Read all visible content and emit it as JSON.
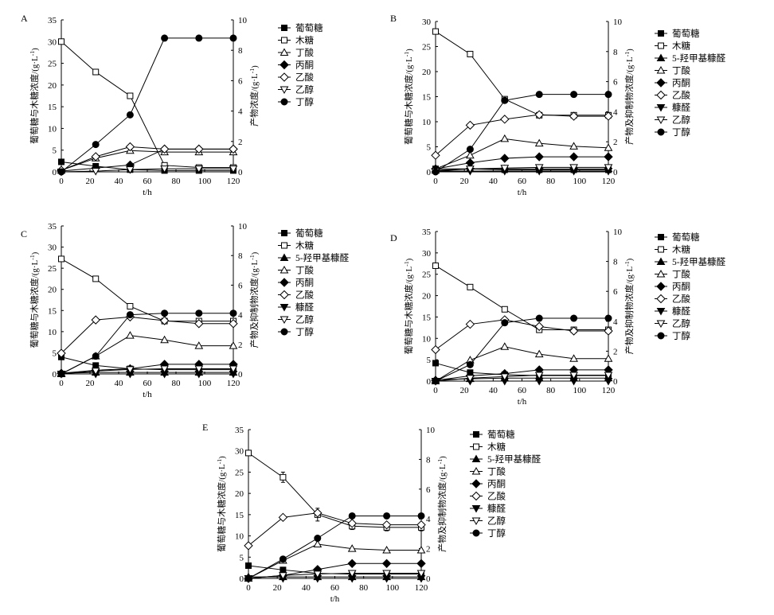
{
  "figure": {
    "ylabel_left": "葡萄糖与木糖浓度/(g·L-1)",
    "ylabel_right_A": "产物浓度/(g·L-1)",
    "ylabel_right_other": "产物及抑制物浓度/(g·L-1)",
    "xlabel": "t/h"
  },
  "legend": {
    "glucose": "葡萄糖",
    "xylose": "木糖",
    "hmf": "5-羟甲基糠醛",
    "butyric": "丁酸",
    "acetone": "丙酮",
    "acetic": "乙酸",
    "furfural": "糠醛",
    "ethanol": "乙醇",
    "butanol": "丁醇"
  },
  "chart_data": [
    {
      "panel": "A",
      "type": "line",
      "x": [
        0,
        24,
        48,
        72,
        96,
        120
      ],
      "xlim": [
        0,
        120
      ],
      "x_ticks": [
        0,
        20,
        40,
        60,
        80,
        100,
        120
      ],
      "ylim_left": [
        0,
        35
      ],
      "y_ticks_left": [
        0,
        5,
        10,
        15,
        20,
        25,
        30,
        35
      ],
      "ylim_right": [
        0,
        10
      ],
      "y_ticks_right": [
        0,
        2,
        4,
        6,
        8,
        10
      ],
      "series": [
        {
          "key": "glucose",
          "axis": "left",
          "values": [
            2.3,
            1.3,
            0.5,
            0.3,
            0.3,
            0.3
          ]
        },
        {
          "key": "xylose",
          "axis": "left",
          "values": [
            30,
            23,
            17.5,
            1.5,
            1.0,
            1.0
          ]
        },
        {
          "key": "butyric",
          "axis": "right",
          "values": [
            0.1,
            0.9,
            1.4,
            1.3,
            1.3,
            1.3
          ]
        },
        {
          "key": "acetone",
          "axis": "right",
          "values": [
            0.05,
            0.25,
            0.45,
            1.5,
            1.5,
            1.5
          ]
        },
        {
          "key": "acetic",
          "axis": "right",
          "values": [
            0.1,
            1.0,
            1.65,
            1.5,
            1.5,
            1.5
          ]
        },
        {
          "key": "ethanol",
          "axis": "right",
          "values": [
            0.0,
            0.05,
            0.15,
            0.2,
            0.2,
            0.2
          ]
        },
        {
          "key": "butanol",
          "axis": "right",
          "values": [
            0.0,
            1.8,
            3.75,
            8.8,
            8.8,
            8.8
          ]
        }
      ]
    },
    {
      "panel": "B",
      "type": "line",
      "x": [
        0,
        24,
        48,
        72,
        96,
        120
      ],
      "xlim": [
        0,
        120
      ],
      "x_ticks": [
        0,
        20,
        40,
        60,
        80,
        100,
        120
      ],
      "ylim_left": [
        0,
        30
      ],
      "y_ticks_left": [
        0,
        5,
        10,
        15,
        20,
        25,
        30
      ],
      "ylim_right": [
        0,
        10
      ],
      "y_ticks_right": [
        0,
        2,
        4,
        6,
        8,
        10
      ],
      "series": [
        {
          "key": "glucose",
          "axis": "left",
          "values": [
            0.6,
            0.6,
            0.4,
            0.4,
            0.4,
            0.4
          ]
        },
        {
          "key": "xylose",
          "axis": "left",
          "values": [
            28,
            23.5,
            14.5,
            11.3,
            11.3,
            11.3
          ]
        },
        {
          "key": "hmf",
          "axis": "right",
          "values": [
            0.1,
            0.2,
            0.2,
            0.2,
            0.2,
            0.2
          ]
        },
        {
          "key": "butyric",
          "axis": "right",
          "values": [
            0.2,
            1.1,
            2.2,
            1.9,
            1.7,
            1.6
          ]
        },
        {
          "key": "acetone",
          "axis": "right",
          "values": [
            0.2,
            0.6,
            0.9,
            1.0,
            1.0,
            1.0
          ]
        },
        {
          "key": "acetic",
          "axis": "right",
          "values": [
            1.1,
            3.1,
            3.5,
            3.8,
            3.7,
            3.7
          ]
        },
        {
          "key": "furfural",
          "axis": "right",
          "values": [
            0.05,
            0.05,
            0.05,
            0.05,
            0.05,
            0.05
          ]
        },
        {
          "key": "ethanol",
          "axis": "right",
          "values": [
            0.05,
            0.2,
            0.25,
            0.3,
            0.3,
            0.3
          ]
        },
        {
          "key": "butanol",
          "axis": "right",
          "values": [
            0.0,
            1.5,
            4.75,
            5.15,
            5.15,
            5.15
          ]
        }
      ]
    },
    {
      "panel": "C",
      "type": "line",
      "x": [
        0,
        24,
        48,
        72,
        96,
        120
      ],
      "xlim": [
        0,
        120
      ],
      "x_ticks": [
        0,
        20,
        40,
        60,
        80,
        100,
        120
      ],
      "ylim_left": [
        0,
        35
      ],
      "y_ticks_left": [
        0,
        5,
        10,
        15,
        20,
        25,
        30,
        35
      ],
      "ylim_right": [
        0,
        10
      ],
      "y_ticks_right": [
        0,
        2,
        4,
        6,
        8,
        10
      ],
      "series": [
        {
          "key": "glucose",
          "axis": "left",
          "values": [
            4.0,
            2.0,
            1.2,
            1.0,
            1.0,
            1.0
          ]
        },
        {
          "key": "xylose",
          "axis": "left",
          "values": [
            27.2,
            22.5,
            16.0,
            12.5,
            12.5,
            12.5
          ]
        },
        {
          "key": "hmf",
          "axis": "right",
          "values": [
            0.05,
            0.1,
            0.1,
            0.1,
            0.1,
            0.1
          ]
        },
        {
          "key": "butyric",
          "axis": "right",
          "values": [
            0.0,
            1.2,
            2.6,
            2.3,
            1.9,
            1.9
          ]
        },
        {
          "key": "acetone",
          "axis": "right",
          "values": [
            0.05,
            0.25,
            0.35,
            0.65,
            0.65,
            0.65
          ]
        },
        {
          "key": "acetic",
          "axis": "right",
          "values": [
            1.4,
            3.65,
            3.85,
            3.6,
            3.4,
            3.4
          ]
        },
        {
          "key": "furfural",
          "axis": "right",
          "values": [
            0.0,
            0.0,
            0.0,
            0.0,
            0.0,
            0.0
          ]
        },
        {
          "key": "ethanol",
          "axis": "right",
          "values": [
            0.0,
            0.2,
            0.3,
            0.35,
            0.35,
            0.35
          ]
        },
        {
          "key": "butanol",
          "axis": "right",
          "values": [
            0.0,
            1.2,
            4.0,
            4.1,
            4.1,
            4.1
          ]
        }
      ]
    },
    {
      "panel": "D",
      "type": "line",
      "x": [
        0,
        24,
        48,
        72,
        96,
        120
      ],
      "xlim": [
        0,
        120
      ],
      "x_ticks": [
        0,
        20,
        40,
        60,
        80,
        100,
        120
      ],
      "ylim_left": [
        0,
        35
      ],
      "y_ticks_left": [
        0,
        5,
        10,
        15,
        20,
        25,
        30,
        35
      ],
      "ylim_right": [
        0,
        10
      ],
      "y_ticks_right": [
        0,
        2,
        4,
        6,
        8,
        10
      ],
      "series": [
        {
          "key": "glucose",
          "axis": "left",
          "values": [
            4.2,
            2.0,
            1.5,
            1.3,
            1.3,
            1.3
          ]
        },
        {
          "key": "xylose",
          "axis": "left",
          "values": [
            27.0,
            22.0,
            16.8,
            12.0,
            12.0,
            12.0
          ]
        },
        {
          "key": "hmf",
          "axis": "right",
          "values": [
            0.1,
            0.15,
            0.2,
            0.2,
            0.2,
            0.2
          ]
        },
        {
          "key": "butyric",
          "axis": "right",
          "values": [
            0.0,
            1.4,
            2.3,
            1.8,
            1.5,
            1.5
          ]
        },
        {
          "key": "acetone",
          "axis": "right",
          "values": [
            0.05,
            0.35,
            0.5,
            0.75,
            0.75,
            0.75
          ]
        },
        {
          "key": "acetic",
          "axis": "right",
          "values": [
            2.1,
            3.8,
            4.1,
            3.65,
            3.35,
            3.35
          ]
        },
        {
          "key": "furfural",
          "axis": "right",
          "values": [
            0.0,
            0.0,
            0.0,
            0.0,
            0.0,
            0.0
          ]
        },
        {
          "key": "ethanol",
          "axis": "right",
          "values": [
            0.0,
            0.2,
            0.3,
            0.4,
            0.4,
            0.4
          ]
        },
        {
          "key": "butanol",
          "axis": "right",
          "values": [
            0.0,
            1.1,
            3.9,
            4.2,
            4.2,
            4.2
          ]
        }
      ]
    },
    {
      "panel": "E",
      "type": "line",
      "x": [
        0,
        24,
        48,
        72,
        96,
        120
      ],
      "xlim": [
        0,
        120
      ],
      "x_ticks": [
        0,
        20,
        40,
        60,
        80,
        100,
        120
      ],
      "ylim_left": [
        0,
        35
      ],
      "y_ticks_left": [
        0,
        5,
        10,
        15,
        20,
        25,
        30,
        35
      ],
      "ylim_right": [
        0,
        10
      ],
      "y_ticks_right": [
        0,
        2,
        4,
        6,
        8,
        10
      ],
      "series": [
        {
          "key": "glucose",
          "axis": "left",
          "values": [
            3.0,
            2.0,
            1.2,
            1.0,
            1.0,
            1.0
          ]
        },
        {
          "key": "xylose",
          "axis": "left",
          "values": [
            29.5,
            23.8,
            15.0,
            12.3,
            12.0,
            12.0
          ],
          "err": [
            0.5,
            1.2,
            1.5,
            0.8,
            0.8,
            0.8
          ]
        },
        {
          "key": "hmf",
          "axis": "right",
          "values": [
            0.1,
            0.1,
            0.1,
            0.1,
            0.1,
            0.1
          ]
        },
        {
          "key": "butyric",
          "axis": "right",
          "values": [
            0.0,
            1.2,
            2.3,
            2.0,
            1.9,
            1.9
          ]
        },
        {
          "key": "acetone",
          "axis": "right",
          "values": [
            0.0,
            0.2,
            0.6,
            1.0,
            1.0,
            1.0
          ]
        },
        {
          "key": "acetic",
          "axis": "right",
          "values": [
            2.2,
            4.1,
            4.4,
            3.7,
            3.6,
            3.6
          ]
        },
        {
          "key": "furfural",
          "axis": "right",
          "values": [
            0.0,
            0.0,
            0.0,
            0.0,
            0.0,
            0.0
          ]
        },
        {
          "key": "ethanol",
          "axis": "right",
          "values": [
            0.0,
            0.2,
            0.3,
            0.35,
            0.35,
            0.35
          ]
        },
        {
          "key": "butanol",
          "axis": "right",
          "values": [
            0.0,
            1.3,
            2.7,
            4.2,
            4.2,
            4.2
          ]
        }
      ]
    }
  ]
}
